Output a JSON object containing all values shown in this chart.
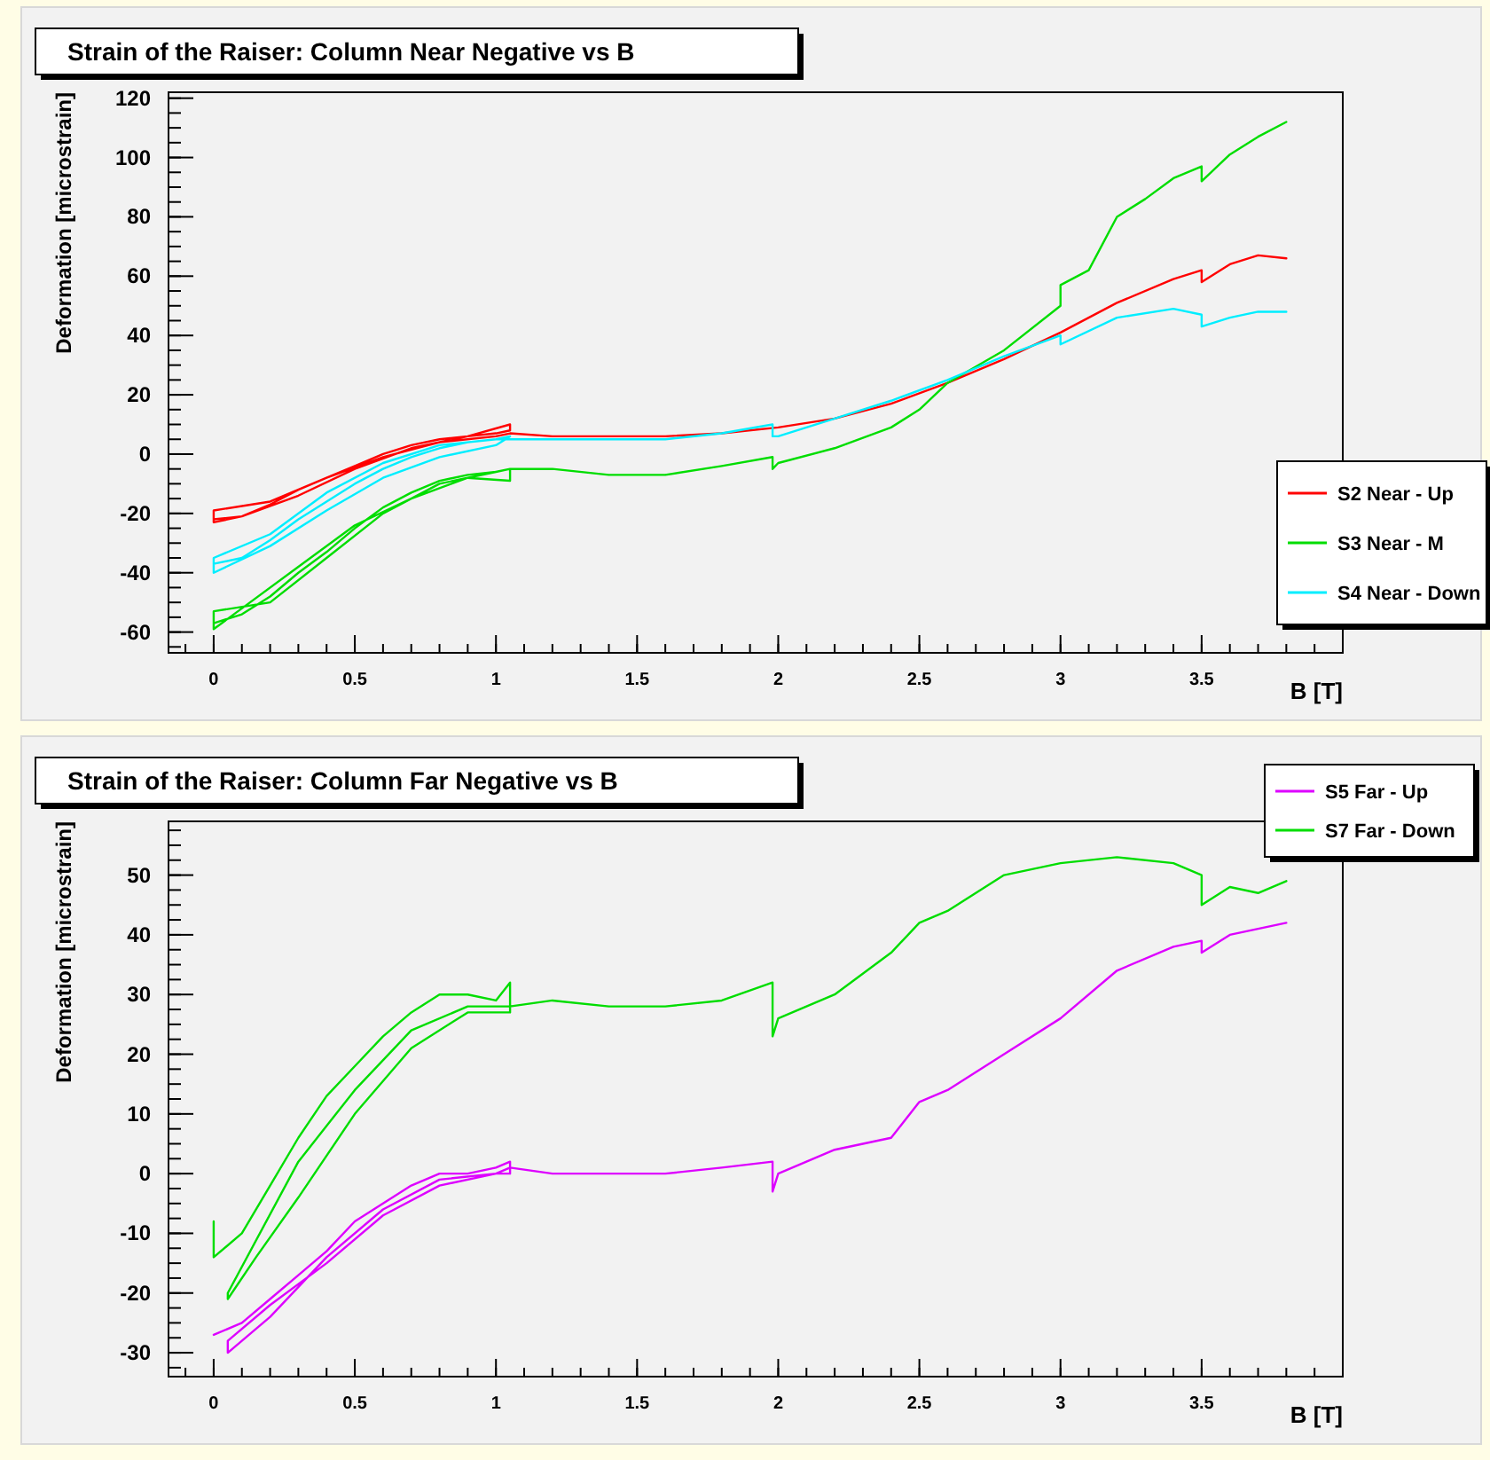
{
  "chart_data": [
    {
      "type": "line",
      "title": "Strain of the Raiser: Column Near Negative vs B",
      "xlabel": "B [T]",
      "ylabel": "Deformation [microstrain]",
      "xlim": [
        -0.16,
        4.0
      ],
      "ylim": [
        -67,
        122
      ],
      "xticks": [
        0,
        0.5,
        1,
        1.5,
        2,
        2.5,
        3,
        3.5
      ],
      "yticks": [
        -60,
        -40,
        -20,
        0,
        20,
        40,
        60,
        80,
        100,
        120
      ],
      "legend": "right",
      "series": [
        {
          "name": "S2 Near - Up",
          "color": "#ff0000",
          "x": [
            0,
            0.1,
            0.2,
            0.3,
            0.4,
            0.5,
            0.6,
            0.7,
            0.8,
            0.9,
            1.0,
            1.05,
            1.05,
            0.9,
            0.7,
            0.5,
            0.3,
            0.1,
            0,
            0,
            0.2,
            0.4,
            0.6,
            0.8,
            1.0,
            1.05,
            1.2,
            1.4,
            1.6,
            1.8,
            2.0,
            2.2,
            2.4,
            2.6,
            2.8,
            3.0,
            3.2,
            3.4,
            3.5,
            3.5,
            3.6,
            3.7,
            3.8
          ],
          "values": [
            -22,
            -21,
            -17,
            -12,
            -8,
            -4,
            0,
            3,
            5,
            6,
            7,
            8,
            10,
            6,
            2,
            -5,
            -14,
            -21,
            -23,
            -19,
            -16,
            -8,
            -1,
            4,
            6,
            7,
            6,
            6,
            6,
            7,
            9,
            12,
            17,
            24,
            32,
            41,
            51,
            59,
            62,
            58,
            64,
            67,
            66
          ]
        },
        {
          "name": "S3 Near - M",
          "color": "#00dd00",
          "x": [
            0,
            0.1,
            0.2,
            0.3,
            0.4,
            0.5,
            0.6,
            0.7,
            0.8,
            0.9,
            1.0,
            1.05,
            1.05,
            0.9,
            0.7,
            0.5,
            0.3,
            0.1,
            0,
            0,
            0.2,
            0.4,
            0.6,
            0.8,
            1.0,
            1.05,
            1.2,
            1.4,
            1.6,
            1.8,
            1.98,
            1.98,
            2.0,
            2.2,
            2.4,
            2.5,
            2.6,
            2.8,
            3.0,
            3.0,
            3.1,
            3.2,
            3.3,
            3.4,
            3.5,
            3.5,
            3.6,
            3.7,
            3.8
          ],
          "values": [
            -57,
            -54,
            -48,
            -40,
            -33,
            -25,
            -18,
            -13,
            -9,
            -7,
            -6,
            -5,
            -9,
            -8,
            -15,
            -24,
            -38,
            -52,
            -59,
            -53,
            -50,
            -35,
            -20,
            -10,
            -6,
            -5,
            -5,
            -7,
            -7,
            -4,
            -1,
            -5,
            -3,
            2,
            9,
            15,
            24,
            35,
            50,
            57,
            62,
            80,
            86,
            93,
            97,
            92,
            101,
            107,
            112
          ]
        },
        {
          "name": "S4 Near - Down",
          "color": "#00eeff",
          "x": [
            0,
            0.1,
            0.2,
            0.3,
            0.4,
            0.5,
            0.6,
            0.7,
            0.8,
            0.9,
            1.0,
            1.05,
            1.05,
            1.0,
            0.8,
            0.6,
            0.4,
            0.2,
            0,
            0,
            0.2,
            0.4,
            0.6,
            0.8,
            1.0,
            1.2,
            1.4,
            1.6,
            1.8,
            1.98,
            1.98,
            2.0,
            2.2,
            2.4,
            2.6,
            2.8,
            3.0,
            3.0,
            3.2,
            3.4,
            3.5,
            3.5,
            3.6,
            3.7,
            3.8
          ],
          "values": [
            -37,
            -35,
            -29,
            -22,
            -16,
            -10,
            -5,
            -1,
            2,
            4,
            5,
            6,
            6,
            3,
            -1,
            -8,
            -19,
            -31,
            -40,
            -35,
            -27,
            -13,
            -3,
            3,
            5,
            5,
            5,
            5,
            7,
            10,
            6,
            6,
            12,
            18,
            25,
            33,
            40,
            37,
            46,
            49,
            47,
            43,
            46,
            48,
            48
          ]
        }
      ]
    },
    {
      "type": "line",
      "title": "Strain of the Raiser: Column Far Negative vs B",
      "xlabel": "B [T]",
      "ylabel": "Deformation [microstrain]",
      "xlim": [
        -0.16,
        4.0
      ],
      "ylim": [
        -34,
        59
      ],
      "xticks": [
        0,
        0.5,
        1,
        1.5,
        2,
        2.5,
        3,
        3.5
      ],
      "yticks": [
        -30,
        -20,
        -10,
        0,
        10,
        20,
        30,
        40,
        50
      ],
      "legend": "top right",
      "series": [
        {
          "name": "S5 Far - Up",
          "color": "#dd00ff",
          "x": [
            0,
            0.1,
            0.2,
            0.3,
            0.4,
            0.5,
            0.6,
            0.7,
            0.8,
            0.9,
            1.0,
            1.05,
            1.05,
            1.0,
            0.8,
            0.6,
            0.4,
            0.2,
            0.05,
            0.05,
            0.2,
            0.4,
            0.6,
            0.8,
            1.0,
            1.05,
            1.2,
            1.4,
            1.6,
            1.8,
            1.98,
            1.98,
            2.0,
            2.2,
            2.4,
            2.5,
            2.6,
            2.8,
            3.0,
            3.2,
            3.4,
            3.5,
            3.5,
            3.6,
            3.7,
            3.8
          ],
          "values": [
            -27,
            -25,
            -21,
            -17,
            -13,
            -8,
            -5,
            -2,
            0,
            0,
            1,
            2,
            0,
            0,
            -1,
            -6,
            -14,
            -24,
            -30,
            -28,
            -22,
            -15,
            -7,
            -2,
            0,
            1,
            0,
            0,
            0,
            1,
            2,
            -3,
            0,
            4,
            6,
            12,
            14,
            20,
            26,
            34,
            38,
            39,
            37,
            40,
            41,
            42
          ]
        },
        {
          "name": "S7 Far - Down",
          "color": "#00dd00",
          "x": [
            0,
            0,
            0.1,
            0.2,
            0.3,
            0.4,
            0.5,
            0.6,
            0.7,
            0.8,
            0.9,
            1.0,
            1.05,
            1.05,
            0.9,
            0.7,
            0.5,
            0.3,
            0.15,
            0.05,
            0.05,
            0.3,
            0.5,
            0.7,
            0.9,
            1.05,
            1.2,
            1.4,
            1.6,
            1.8,
            1.98,
            1.98,
            2.0,
            2.2,
            2.4,
            2.5,
            2.6,
            2.8,
            3.0,
            3.2,
            3.4,
            3.5,
            3.5,
            3.6,
            3.7,
            3.8
          ],
          "values": [
            -8,
            -14,
            -10,
            -2,
            6,
            13,
            18,
            23,
            27,
            30,
            30,
            29,
            32,
            27,
            27,
            21,
            10,
            -4,
            -14,
            -21,
            -20,
            2,
            14,
            24,
            28,
            28,
            29,
            28,
            28,
            29,
            32,
            23,
            26,
            30,
            37,
            42,
            44,
            50,
            52,
            53,
            52,
            50,
            45,
            48,
            47,
            49
          ]
        }
      ]
    }
  ]
}
